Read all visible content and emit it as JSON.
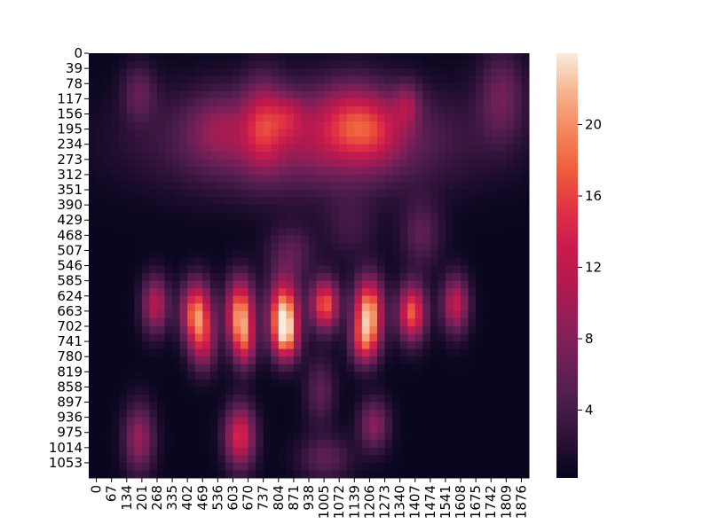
{
  "chart_data": {
    "type": "heatmap",
    "title": "",
    "xlabel": "",
    "ylabel": "",
    "x_tick_labels": [
      "0",
      "67",
      "134",
      "201",
      "268",
      "335",
      "402",
      "469",
      "536",
      "603",
      "670",
      "737",
      "804",
      "871",
      "938",
      "1005",
      "1072",
      "1139",
      "1206",
      "1273",
      "1340",
      "1407",
      "1474",
      "1541",
      "1608",
      "1675",
      "1742",
      "1809",
      "1876"
    ],
    "y_tick_labels": [
      "0",
      "39",
      "78",
      "117",
      "156",
      "195",
      "234",
      "273",
      "312",
      "351",
      "390",
      "429",
      "468",
      "507",
      "546",
      "585",
      "624",
      "663",
      "702",
      "741",
      "780",
      "819",
      "858",
      "897",
      "936",
      "975",
      "1014",
      "1053"
    ],
    "x_range": [
      0,
      1920
    ],
    "y_range": [
      0,
      1080
    ],
    "colormap": "rocket",
    "colorbar": {
      "ticks": [
        4,
        8,
        12,
        16,
        20
      ],
      "range": [
        0.2,
        24
      ],
      "colors": [
        "#03051a",
        "#2c1137",
        "#4c1d4b",
        "#6d1f56",
        "#8f1f58",
        "#b01a4e",
        "#cb1b4f",
        "#e13342",
        "#ef5e3c",
        "#f4875e",
        "#f6b48e",
        "#faebdd"
      ]
    },
    "blobs": [
      {
        "label": "upper band",
        "x": 960,
        "y": 220,
        "sx": 430,
        "sy": 90,
        "value": 9
      },
      {
        "label": "upper hotspot 1",
        "x": 560,
        "y": 190,
        "sx": 90,
        "sy": 60,
        "value": 4
      },
      {
        "label": "upper hotspot 2",
        "x": 760,
        "y": 175,
        "sx": 60,
        "sy": 80,
        "value": 8
      },
      {
        "label": "upper hotspot 3",
        "x": 870,
        "y": 160,
        "sx": 50,
        "sy": 40,
        "value": 5
      },
      {
        "label": "upper hotspot 4",
        "x": 1150,
        "y": 170,
        "sx": 110,
        "sy": 70,
        "value": 8
      },
      {
        "label": "upper hotspot 5",
        "x": 1260,
        "y": 200,
        "sx": 90,
        "sy": 60,
        "value": 4
      },
      {
        "label": "upper hotspot 6",
        "x": 1390,
        "y": 130,
        "sx": 40,
        "sy": 40,
        "value": 6
      },
      {
        "label": "top-left spot",
        "x": 220,
        "y": 100,
        "sx": 50,
        "sy": 50,
        "value": 5
      },
      {
        "label": "top-right spot",
        "x": 1800,
        "y": 110,
        "sx": 70,
        "sy": 80,
        "value": 6
      },
      {
        "label": "mid spot",
        "x": 880,
        "y": 510,
        "sx": 70,
        "sy": 50,
        "value": 5
      },
      {
        "label": "mid-right spot",
        "x": 1450,
        "y": 460,
        "sx": 60,
        "sy": 60,
        "value": 5
      },
      {
        "label": "mid-left spot",
        "x": 1140,
        "y": 440,
        "sx": 80,
        "sy": 60,
        "value": 3
      },
      {
        "label": "bar 1",
        "x": 290,
        "y": 640,
        "sx": 40,
        "sy": 50,
        "value": 11
      },
      {
        "label": "bar 2",
        "x": 470,
        "y": 660,
        "sx": 45,
        "sy": 55,
        "value": 18
      },
      {
        "label": "bar 3",
        "x": 660,
        "y": 660,
        "sx": 42,
        "sy": 60,
        "value": 19
      },
      {
        "label": "bar 4",
        "x": 850,
        "y": 665,
        "sx": 45,
        "sy": 60,
        "value": 22
      },
      {
        "label": "bar 5",
        "x": 1030,
        "y": 640,
        "sx": 42,
        "sy": 45,
        "value": 17
      },
      {
        "label": "bar 6",
        "x": 1220,
        "y": 660,
        "sx": 45,
        "sy": 60,
        "value": 21
      },
      {
        "label": "bar 7",
        "x": 1410,
        "y": 660,
        "sx": 42,
        "sy": 50,
        "value": 17
      },
      {
        "label": "bar 8",
        "x": 1600,
        "y": 640,
        "sx": 40,
        "sy": 50,
        "value": 12
      },
      {
        "label": "tail 2",
        "x": 500,
        "y": 740,
        "sx": 40,
        "sy": 50,
        "value": 9
      },
      {
        "label": "tail 3",
        "x": 680,
        "y": 740,
        "sx": 35,
        "sy": 45,
        "value": 10
      },
      {
        "label": "tail 4",
        "x": 860,
        "y": 730,
        "sx": 40,
        "sy": 40,
        "value": 10
      },
      {
        "label": "tail 6",
        "x": 1200,
        "y": 740,
        "sx": 40,
        "sy": 40,
        "value": 10
      },
      {
        "label": "bottom spot 1",
        "x": 220,
        "y": 980,
        "sx": 45,
        "sy": 60,
        "value": 9
      },
      {
        "label": "bottom spot 2",
        "x": 660,
        "y": 975,
        "sx": 45,
        "sy": 55,
        "value": 14
      },
      {
        "label": "bottom spot 3",
        "x": 1245,
        "y": 945,
        "sx": 45,
        "sy": 45,
        "value": 8
      },
      {
        "label": "bottom spot 4",
        "x": 1010,
        "y": 860,
        "sx": 45,
        "sy": 60,
        "value": 5
      },
      {
        "label": "bottom spot 5",
        "x": 1030,
        "y": 1030,
        "sx": 80,
        "sy": 40,
        "value": 5
      }
    ]
  }
}
